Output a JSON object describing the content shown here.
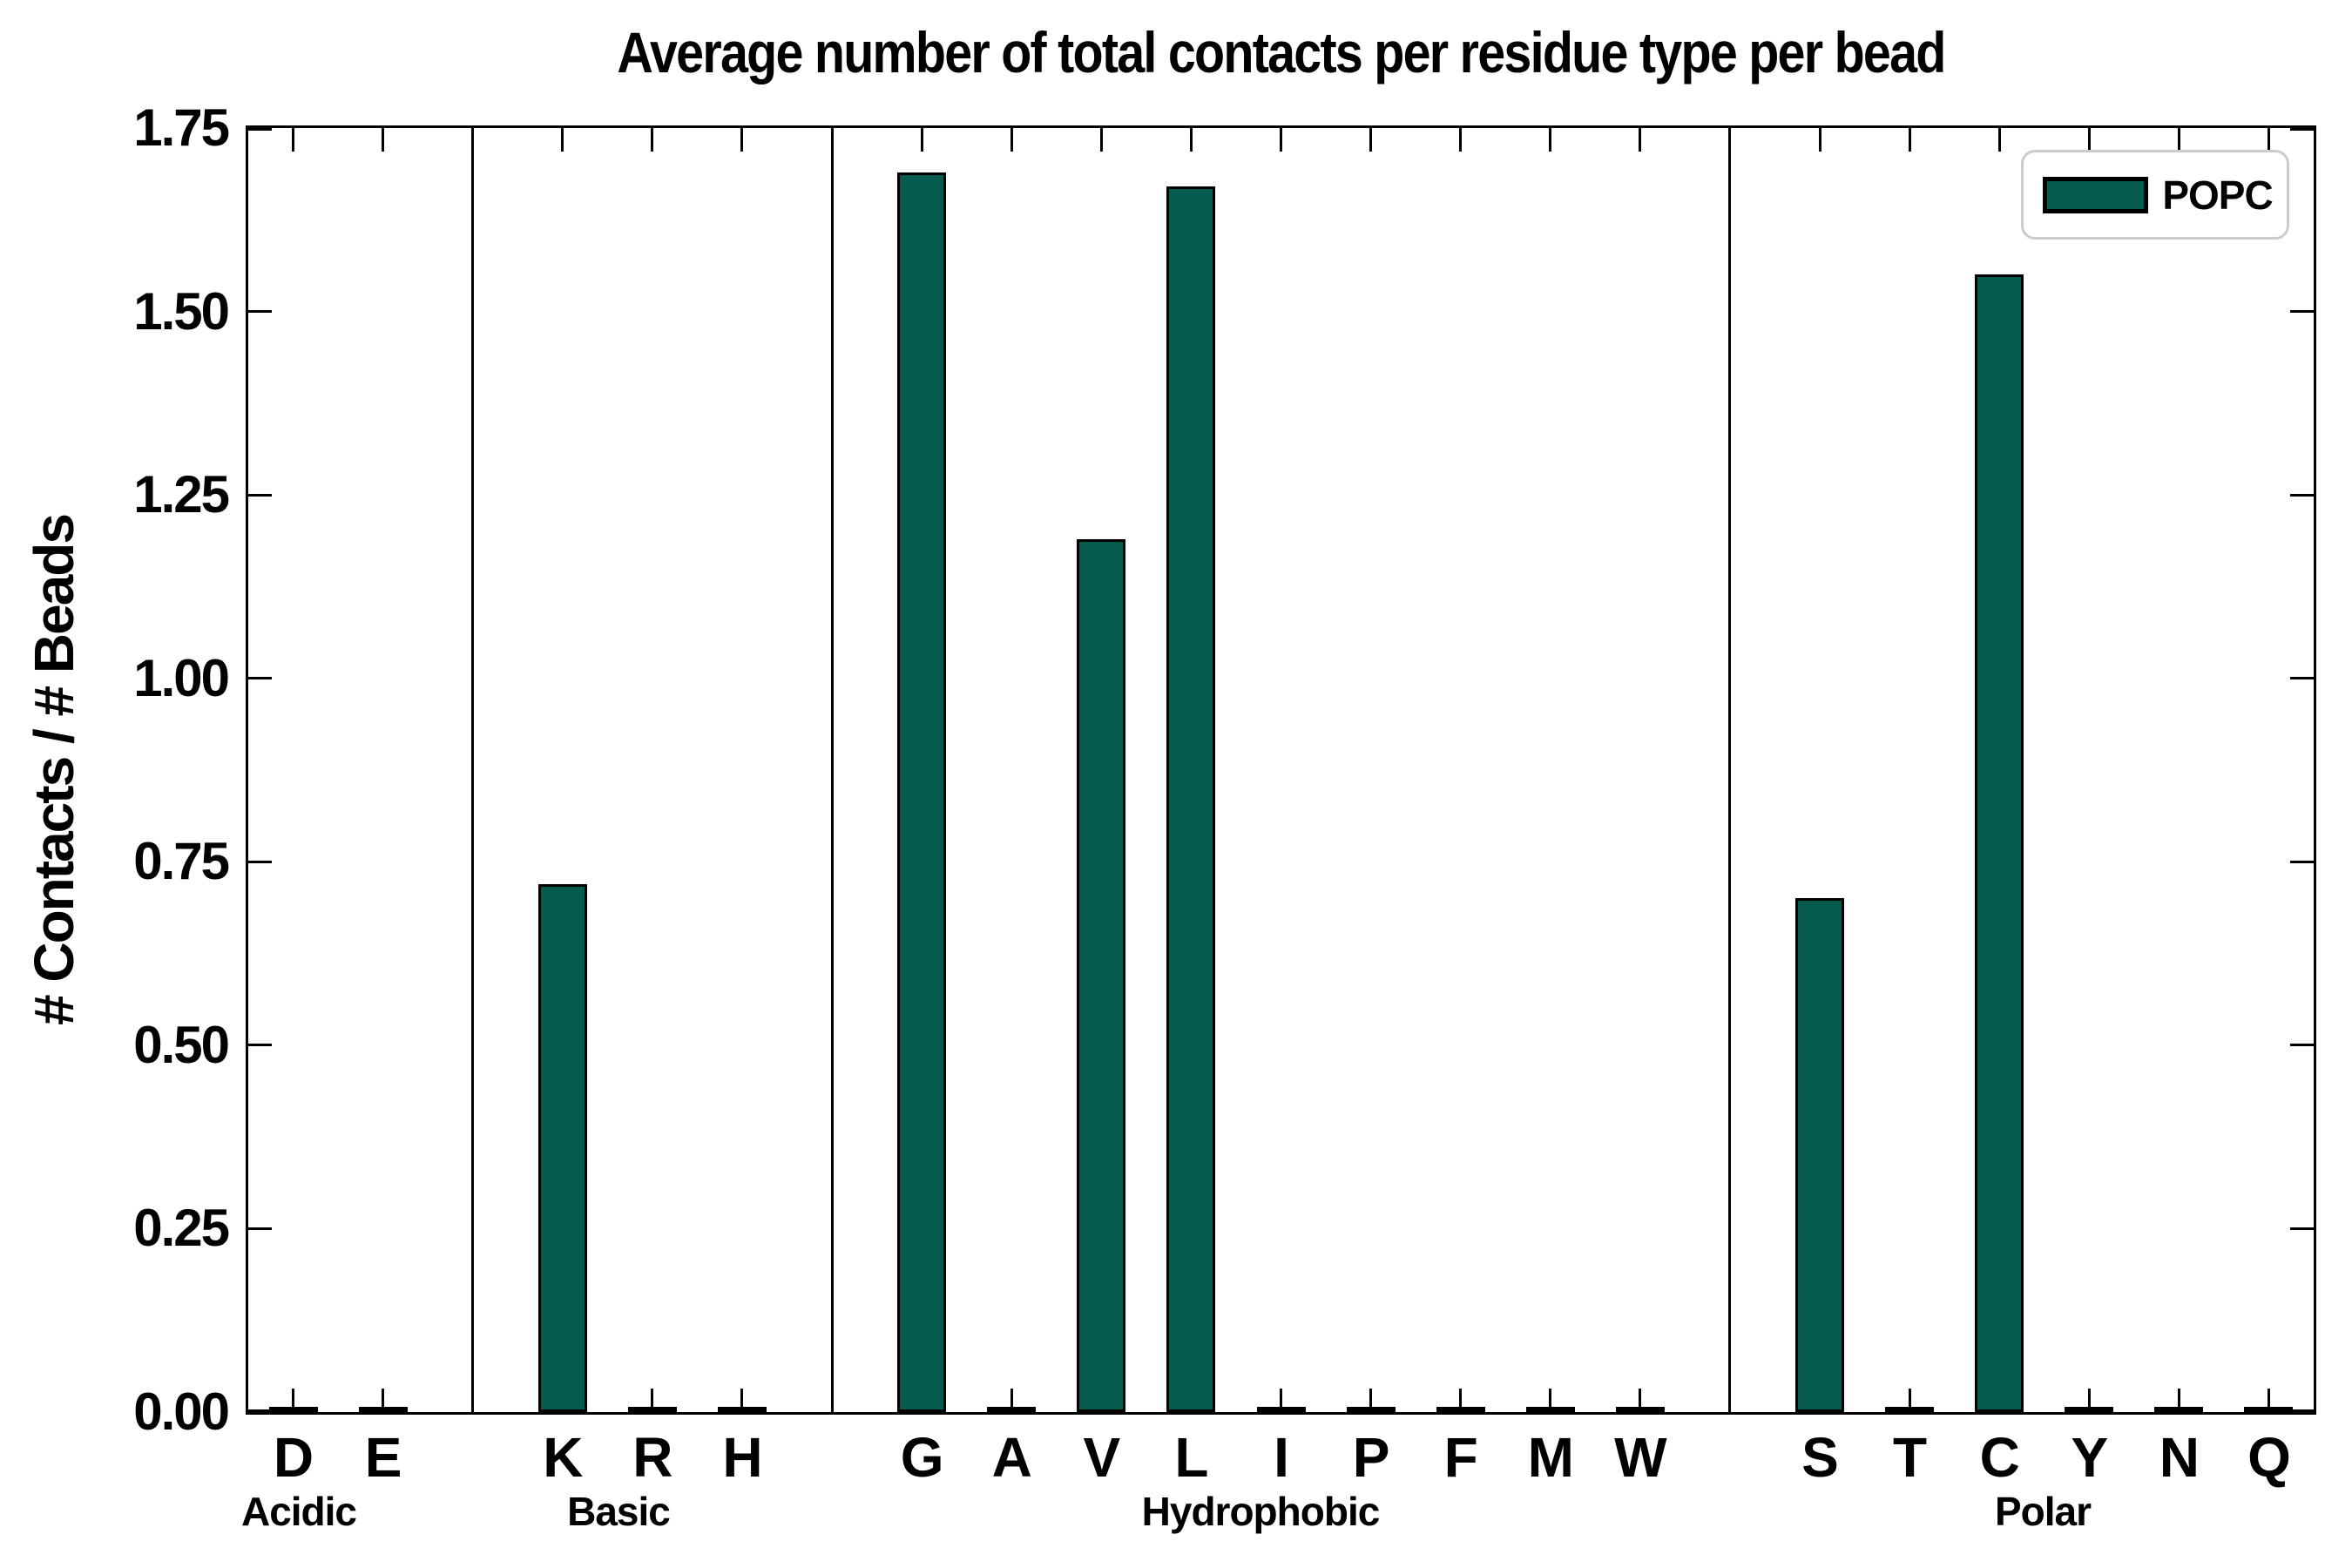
{
  "figure": {
    "title": "Average number of total contacts per residue type per bead",
    "ylabel": "# Contacts / # Beads",
    "legend": {
      "label": "POPC"
    }
  },
  "colors": {
    "bar_fill": "#075b4e",
    "bar_edge": "#000000",
    "axis": "#000000",
    "legend_border": "#cccccc",
    "background": "#ffffff"
  },
  "y_axis": {
    "ticks": [
      "0.00",
      "0.25",
      "0.50",
      "0.75",
      "1.00",
      "1.25",
      "1.50",
      "1.75"
    ],
    "min": 0,
    "max": 1.75
  },
  "chart_data": {
    "type": "bar",
    "title": "Average number of total contacts per residue type per bead",
    "xlabel": "",
    "ylabel": "# Contacts / # Beads",
    "ylim": [
      0,
      1.75
    ],
    "grid": false,
    "legend_position": "upper right",
    "legend_entries": [
      "POPC"
    ],
    "categories": [
      "D",
      "E",
      "K",
      "R",
      "H",
      "G",
      "A",
      "V",
      "L",
      "I",
      "P",
      "F",
      "M",
      "W",
      "S",
      "T",
      "C",
      "Y",
      "N",
      "Q"
    ],
    "series": [
      {
        "name": "POPC",
        "values": [
          0.005,
          0.005,
          0.72,
          0.005,
          0.005,
          1.69,
          0.005,
          1.19,
          1.67,
          0.005,
          0.005,
          0.005,
          0.005,
          0.005,
          0.7,
          0.005,
          1.55,
          0.005,
          0.005,
          0.005
        ]
      }
    ],
    "groups": [
      {
        "label": "Acidic",
        "categories": [
          "D",
          "E"
        ]
      },
      {
        "label": "Basic",
        "categories": [
          "K",
          "R",
          "H"
        ]
      },
      {
        "label": "Hydrophobic",
        "categories": [
          "G",
          "A",
          "V",
          "L",
          "I",
          "P",
          "F",
          "M",
          "W"
        ]
      },
      {
        "label": "Polar",
        "categories": [
          "S",
          "T",
          "C",
          "Y",
          "N",
          "Q"
        ]
      }
    ]
  }
}
